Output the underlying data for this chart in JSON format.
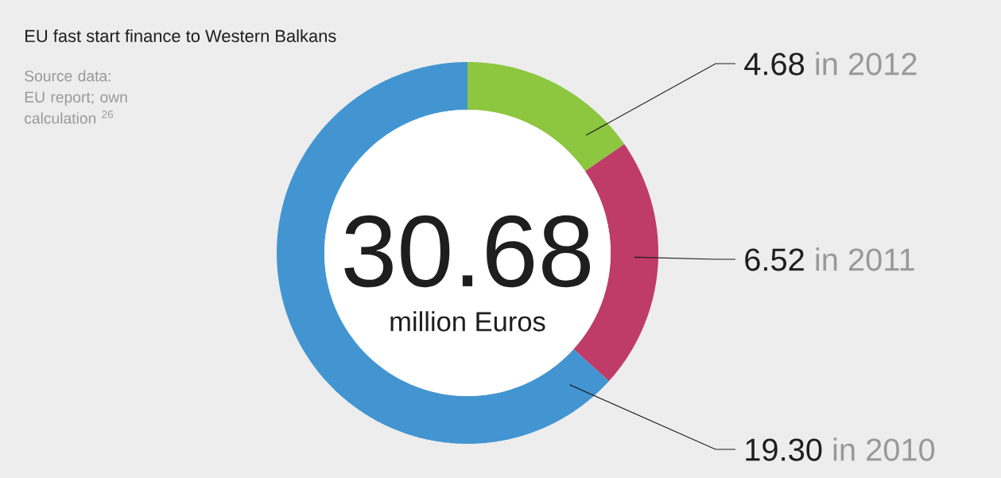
{
  "chart_data": {
    "type": "donut",
    "title": "EU fast start finance to Western Balkans",
    "categories": [
      "in 2012",
      "in 2011",
      "in 2010"
    ],
    "values": [
      4.68,
      6.52,
      19.3
    ],
    "value_labels": [
      "4.68",
      "6.52",
      "19.30"
    ],
    "colors": [
      "#8dc63f",
      "#bf3b68",
      "#4295d1"
    ],
    "annotations": [
      "30.68",
      "million Euros",
      "Source data: EU report; own calculation $^{26}$"
    ]
  }
}
